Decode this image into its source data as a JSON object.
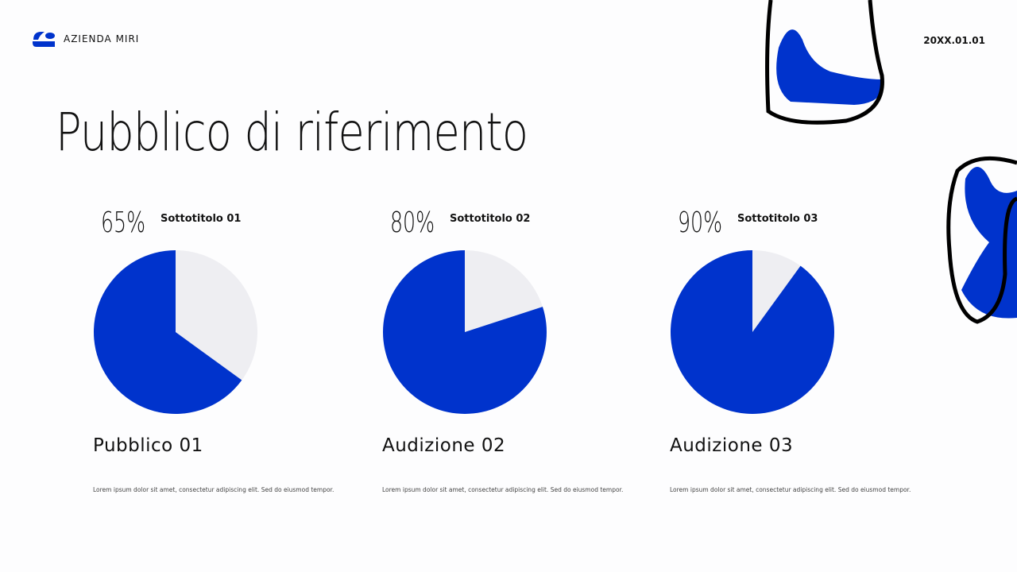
{
  "header": {
    "company": "AZIENDA MIRI",
    "date": "20XX.01.01"
  },
  "title": "Pubblico di riferimento",
  "colors": {
    "accent": "#0033cc",
    "remainder": "#eeeef2"
  },
  "chart_data": [
    {
      "type": "pie",
      "percent_label": "65%",
      "subtitle": "Sottotitolo 01",
      "values": [
        65,
        35
      ],
      "name": "Pubblico 01",
      "description": "Lorem ipsum dolor sit amet, consectetur adipiscing elit. Sed do eiusmod tempor."
    },
    {
      "type": "pie",
      "percent_label": "80%",
      "subtitle": "Sottotitolo 02",
      "values": [
        80,
        20
      ],
      "name": "Audizione 02",
      "description": "Lorem ipsum dolor sit amet, consectetur adipiscing elit. Sed do eiusmod tempor."
    },
    {
      "type": "pie",
      "percent_label": "90%",
      "subtitle": "Sottotitolo 03",
      "values": [
        90,
        10
      ],
      "name": "Audizione 03",
      "description": "Lorem ipsum dolor sit amet, consectetur adipiscing elit. Sed do eiusmod tempor."
    }
  ]
}
